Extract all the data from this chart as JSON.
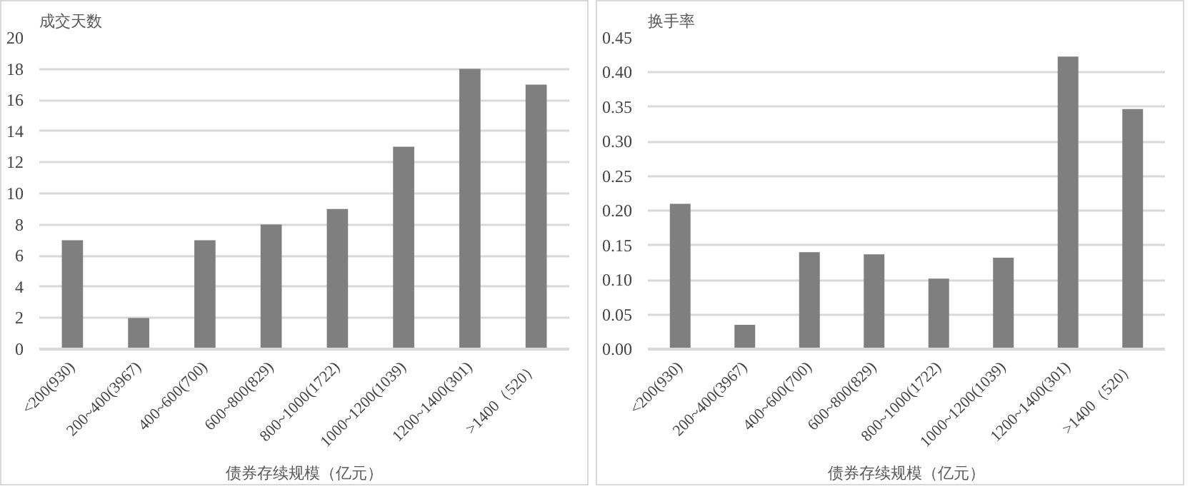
{
  "chart_data": [
    {
      "type": "bar",
      "ylabel": "成交天数",
      "xlabel": "债券存续规模（亿元）",
      "categories": [
        "<200(930)",
        "200~400(3967)",
        "400~600(700)",
        "600~800(829)",
        "800~1000(1722)",
        "1000~1200(1039)",
        "1200~1400(301)",
        ">1400（520）"
      ],
      "series": [
        {
          "color": "#7f7f7f",
          "values": [
            7,
            2,
            7,
            8,
            9,
            13,
            18,
            17
          ]
        }
      ],
      "ylim": [
        0,
        20
      ],
      "yticks": [
        0,
        2,
        4,
        6,
        8,
        10,
        12,
        14,
        16,
        18,
        20
      ],
      "grid": "y"
    },
    {
      "type": "bar",
      "ylabel": "换手率",
      "xlabel": "债券存续规模（亿元）",
      "categories": [
        "<200(930)",
        "200~400(3967)",
        "400~600(700)",
        "600~800(829)",
        "800~1000(1722)",
        "1000~1200(1039)",
        "1200~1400(301)",
        ">1400（520）"
      ],
      "series": [
        {
          "color": "#7f7f7f",
          "values": [
            0.21,
            0.035,
            0.14,
            0.137,
            0.102,
            0.132,
            0.423,
            0.347
          ]
        }
      ],
      "ylim": [
        0,
        0.45
      ],
      "yticks": [
        {
          "value": 0,
          "label": "0.00"
        },
        {
          "value": 0.05,
          "label": "0.05"
        },
        {
          "value": 0.1,
          "label": "0.10"
        },
        {
          "value": 0.15,
          "label": "0.15"
        },
        {
          "value": 0.2,
          "label": "0.20"
        },
        {
          "value": 0.25,
          "label": "0.25"
        },
        {
          "value": 0.3,
          "label": "0.30"
        },
        {
          "value": 0.35,
          "label": "0.35"
        },
        {
          "value": 0.4,
          "label": "0.40"
        },
        {
          "value": 0.45,
          "label": "0.45"
        }
      ],
      "grid": "y"
    }
  ]
}
